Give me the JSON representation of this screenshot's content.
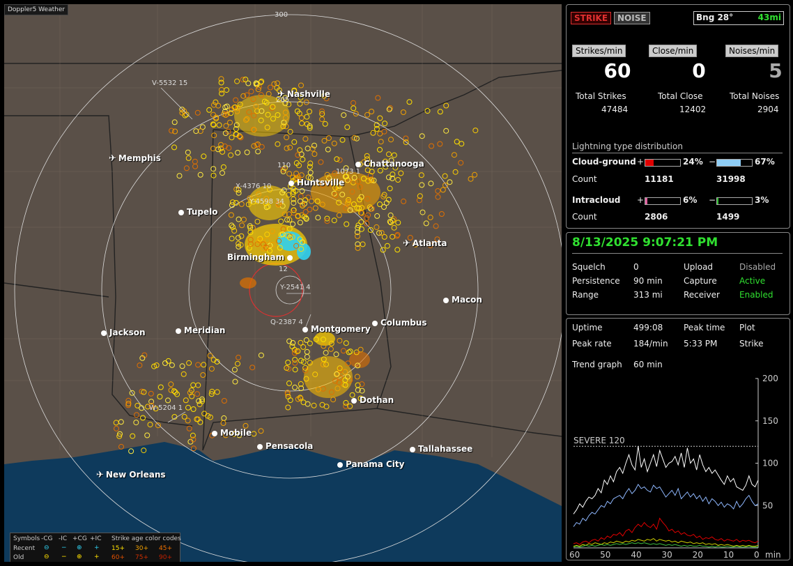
{
  "window": {
    "title": "Doppler5 Weather"
  },
  "map": {
    "range_rings": [
      "300",
      "205",
      "110",
      "12"
    ],
    "cities": [
      {
        "name": "Nashville",
        "kind": "airport"
      },
      {
        "name": "Memphis",
        "kind": "airport"
      },
      {
        "name": "Chattanooga",
        "kind": "city"
      },
      {
        "name": "Huntsville",
        "kind": "city"
      },
      {
        "name": "Tupelo",
        "kind": "city"
      },
      {
        "name": "Atlanta",
        "kind": "airport"
      },
      {
        "name": "Birmingham",
        "kind": "city"
      },
      {
        "name": "Macon",
        "kind": "city"
      },
      {
        "name": "Jackson",
        "kind": "city"
      },
      {
        "name": "Meridian",
        "kind": "city"
      },
      {
        "name": "Montgomery",
        "kind": "city"
      },
      {
        "name": "Columbus",
        "kind": "city"
      },
      {
        "name": "Dothan",
        "kind": "city"
      },
      {
        "name": "Mobile",
        "kind": "city"
      },
      {
        "name": "Pensacola",
        "kind": "city"
      },
      {
        "name": "Tallahassee",
        "kind": "city"
      },
      {
        "name": "Panama City",
        "kind": "city"
      },
      {
        "name": "New Orleans",
        "kind": "airport"
      }
    ],
    "storm_tags": [
      "V-5532 15",
      "X-4376 10",
      "Y-4598 34",
      "1073 1",
      "Y-2541 4",
      "Q-2387 4",
      "W-5204 1"
    ],
    "legend": {
      "symbols_label": "Symbols",
      "cols": [
        "-CG",
        "-IC",
        "+CG",
        "+IC"
      ],
      "rows": [
        "Recent",
        "Old"
      ],
      "age_title": "Strike age color codes",
      "recent_ages": [
        "15+",
        "30+",
        "45+"
      ],
      "old_ages": [
        "60+",
        "75+",
        "90+"
      ]
    }
  },
  "panel": {
    "strike_btn": "STRIKE",
    "noise_btn": "NOISE",
    "bearing": "Bng 28°",
    "distance": "43mi",
    "rates": {
      "strikes_label": "Strikes/min",
      "strikes_value": "60",
      "close_label": "Close/min",
      "close_value": "0",
      "noises_label": "Noises/min",
      "noises_value": "5"
    },
    "totals": {
      "strikes_label": "Total Strikes",
      "strikes_value": "47484",
      "close_label": "Total Close",
      "close_value": "12402",
      "noises_label": "Total Noises",
      "noises_value": "2904"
    },
    "distribution": {
      "title": "Lightning type distribution",
      "cg_label": "Cloud-ground",
      "cg_pos_pct": "24%",
      "cg_neg_pct": "67%",
      "cg_pos_count": "11181",
      "cg_neg_count": "31998",
      "ic_label": "Intracloud",
      "ic_pos_pct": "6%",
      "ic_neg_pct": "3%",
      "ic_pos_count": "2806",
      "ic_neg_count": "1499",
      "count_label": "Count",
      "plus": "+",
      "minus": "−",
      "cg_pos_level": 0.24,
      "cg_neg_level": 0.67,
      "ic_pos_level": 0.06,
      "ic_neg_level": 0.03,
      "cg_pos_color": "#e00000",
      "cg_neg_color": "#8ecdf5",
      "ic_pos_color": "#e060a0",
      "ic_neg_color": "#30c030"
    },
    "datetime": "8/13/2025 9:07:21 PM",
    "settings": {
      "squelch_label": "Squelch",
      "squelch_value": "0",
      "persistence_label": "Persistence",
      "persistence_value": "90 min",
      "range_label": "Range",
      "range_value": "313 mi",
      "upload_label": "Upload",
      "upload_value": "Disabled",
      "capture_label": "Capture",
      "capture_value": "Active",
      "receiver_label": "Receiver",
      "receiver_value": "Enabled"
    },
    "stats": {
      "uptime_label": "Uptime",
      "uptime_value": "499:08",
      "peaktime_label": "Peak time",
      "peaktime_value": "5:33 PM",
      "plot_label": "Plot",
      "plot_value": "Strike",
      "peakrate_label": "Peak rate",
      "peakrate_value": "184/min",
      "trend_label": "Trend graph",
      "trend_value": "60 min"
    }
  },
  "chart_data": {
    "type": "line",
    "severe_label": "SEVERE 120",
    "severe_level": 120,
    "xlabel": "min",
    "x_ticks": [
      "60",
      "50",
      "40",
      "30",
      "20",
      "10",
      "0"
    ],
    "y_ticks": [
      "200",
      "150",
      "100",
      "50"
    ],
    "ylim": [
      0,
      200
    ],
    "xlim": [
      60,
      0
    ],
    "series": [
      {
        "color": "#ffffff",
        "values": [
          40,
          45,
          52,
          48,
          55,
          60,
          58,
          62,
          70,
          65,
          80,
          75,
          85,
          78,
          90,
          95,
          88,
          100,
          110,
          98,
          92,
          120,
          95,
          105,
          90,
          100,
          110,
          96,
          115,
          105,
          95,
          100,
          102,
          108,
          98,
          112,
          95,
          118,
          100,
          105,
          92,
          110,
          98,
          90,
          95,
          88,
          92,
          86,
          80,
          75,
          85,
          78,
          82,
          72,
          70,
          68,
          74,
          85,
          75,
          72,
          80
        ]
      },
      {
        "color": "#8fb8ff",
        "values": [
          25,
          30,
          28,
          35,
          32,
          38,
          42,
          40,
          45,
          50,
          48,
          55,
          52,
          58,
          60,
          62,
          58,
          65,
          70,
          64,
          68,
          75,
          70,
          72,
          68,
          66,
          74,
          70,
          72,
          66,
          60,
          64,
          68,
          62,
          70,
          58,
          62,
          66,
          60,
          64,
          58,
          62,
          55,
          60,
          52,
          58,
          55,
          50,
          54,
          48,
          52,
          50,
          46,
          55,
          48,
          52,
          58,
          62,
          55,
          50,
          52
        ]
      },
      {
        "color": "#e00000",
        "values": [
          5,
          6,
          4,
          7,
          8,
          6,
          9,
          10,
          8,
          12,
          10,
          14,
          12,
          16,
          15,
          18,
          14,
          20,
          22,
          18,
          24,
          28,
          25,
          30,
          26,
          24,
          28,
          22,
          35,
          30,
          26,
          20,
          22,
          18,
          20,
          16,
          18,
          15,
          14,
          16,
          12,
          14,
          10,
          12,
          11,
          13,
          10,
          9,
          11,
          8,
          10,
          9,
          8,
          10,
          7,
          9,
          8,
          9,
          7,
          6,
          8
        ]
      },
      {
        "color": "#d0d000",
        "values": [
          2,
          3,
          2,
          4,
          3,
          5,
          4,
          6,
          5,
          4,
          6,
          5,
          7,
          6,
          8,
          7,
          6,
          8,
          7,
          9,
          8,
          10,
          9,
          8,
          10,
          9,
          11,
          8,
          10,
          9,
          8,
          9,
          7,
          8,
          6,
          8,
          7,
          6,
          7,
          5,
          6,
          5,
          6,
          4,
          5,
          4,
          5,
          3,
          4,
          3,
          4,
          3,
          2,
          3,
          2,
          3,
          2,
          3,
          2,
          2,
          3
        ]
      },
      {
        "color": "#40c040",
        "values": [
          1,
          2,
          1,
          2,
          3,
          2,
          3,
          2,
          3,
          4,
          3,
          4,
          3,
          4,
          5,
          4,
          5,
          4,
          5,
          6,
          5,
          6,
          5,
          6,
          5,
          4,
          5,
          4,
          5,
          4,
          3,
          4,
          3,
          4,
          3,
          2,
          3,
          2,
          3,
          2,
          2,
          3,
          2,
          2,
          1,
          2,
          1,
          2,
          1,
          1,
          2,
          1,
          1,
          2,
          1,
          1,
          1,
          2,
          1,
          1,
          1
        ]
      }
    ]
  }
}
